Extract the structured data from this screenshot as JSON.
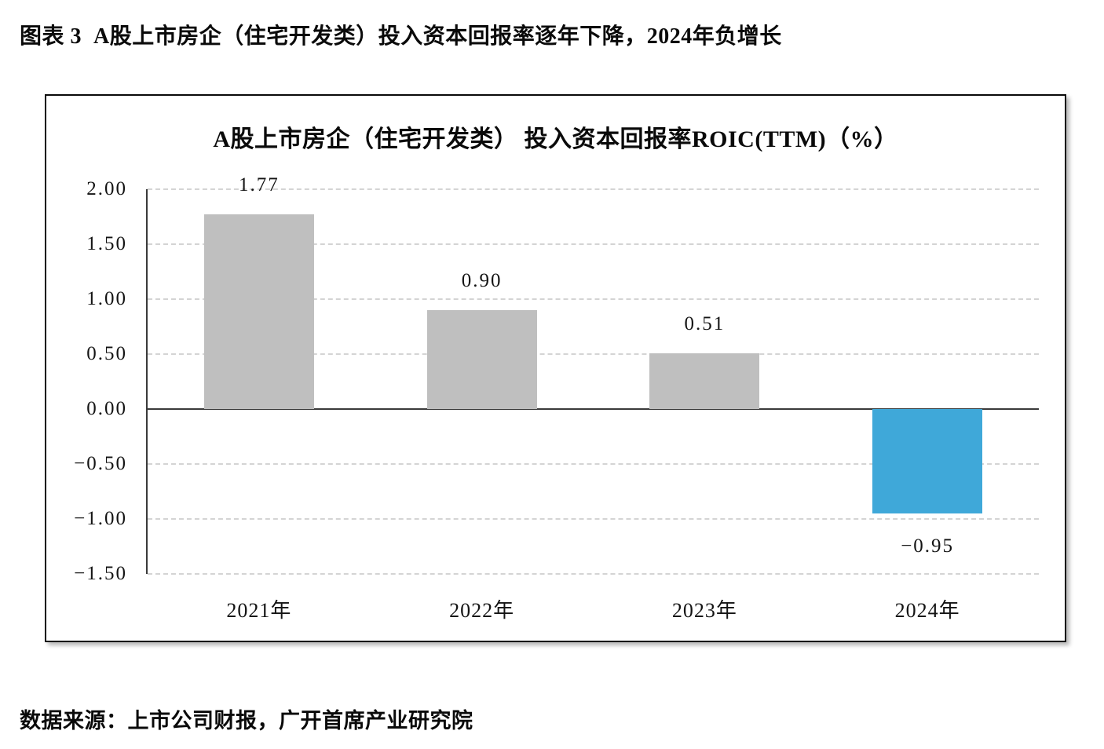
{
  "page_title": "图表 3  A股上市房企（住宅开发类）投入资本回报率逐年下降，2024年负增长",
  "source_note": "数据来源：上市公司财报，广开首席产业研究院",
  "chart_data": {
    "type": "bar",
    "title": "A股上市房企（住宅开发类） 投入资本回报率ROIC(TTM)（%）",
    "categories": [
      "2021年",
      "2022年",
      "2023年",
      "2024年"
    ],
    "values": [
      1.77,
      0.9,
      0.51,
      -0.95
    ],
    "value_labels": [
      "1.77",
      "0.90",
      "0.51",
      "−0.95"
    ],
    "bar_colors": [
      "#bfbfbf",
      "#bfbfbf",
      "#bfbfbf",
      "#3fa8d9"
    ],
    "xlabel": "",
    "ylabel": "",
    "ylim": [
      -1.5,
      2.0
    ],
    "yticks": [
      2.0,
      1.5,
      1.0,
      0.5,
      0.0,
      -0.5,
      -1.0,
      -1.5
    ],
    "ytick_labels": [
      "2.00",
      "1.50",
      "1.00",
      "0.50",
      "0.00",
      "−0.50",
      "−1.00",
      "−1.50"
    ],
    "grid": "horizontal-dashed",
    "legend_position": "none",
    "colors": {
      "bar_default": "#bfbfbf",
      "bar_highlight_negative": "#3fa8d9",
      "gridline": "#d4d4d4",
      "axis": "#3a3a3a",
      "text": "#141414",
      "background": "#ffffff"
    }
  }
}
